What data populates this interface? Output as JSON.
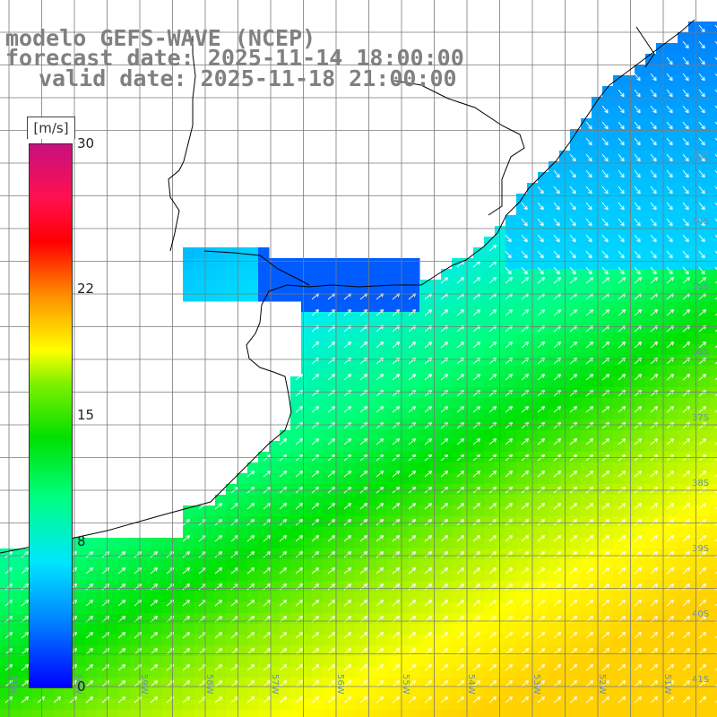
{
  "title": {
    "line1": "modelo GEFS-WAVE (NCEP)",
    "line2": "forecast date: 2025-11-14 18:00:00",
    "line3": "valid date: 2025-11-18 21:00:00"
  },
  "colorbar": {
    "unit": "[m/s]",
    "min": 0,
    "max": 30,
    "ticks": [
      "30",
      "22",
      "15",
      "8",
      "0"
    ],
    "tick_values": [
      30,
      22,
      15,
      8,
      0
    ]
  },
  "lat_labels": [
    "33S",
    "34S",
    "35S",
    "36S",
    "37S",
    "38S",
    "39S",
    "40S",
    "41S"
  ],
  "lon_labels": [
    "61W",
    "60W",
    "59W",
    "58W",
    "57W",
    "56W",
    "55W",
    "54W",
    "53W",
    "52W",
    "51W"
  ],
  "colors": {
    "land": "#ffffff",
    "grid": "#7a7a7a",
    "coast": "#000000",
    "arrow": "#ffffff",
    "title": "#808080"
  }
}
